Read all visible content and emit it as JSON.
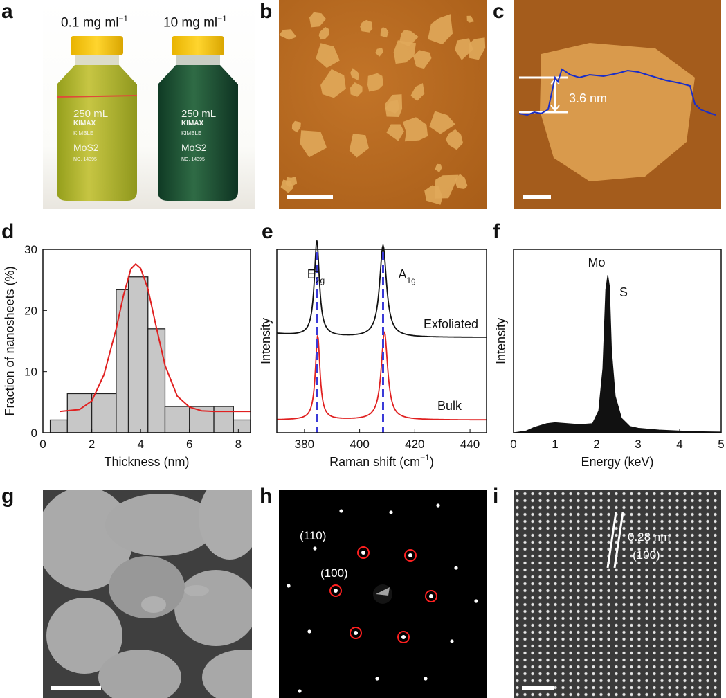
{
  "panels": {
    "a": {
      "letter": "a",
      "bottle_left_label": "0.1 mg ml",
      "bottle_right_label": "10 mg ml",
      "unit_sup": "−1",
      "bottle_text": [
        "250 mL",
        "KIMAX",
        "KIMBLE",
        "MoS2",
        "NO. 14395"
      ]
    },
    "b": {
      "letter": "b"
    },
    "c": {
      "letter": "c",
      "height_annotation": "3.6 nm"
    },
    "d": {
      "letter": "d"
    },
    "e": {
      "letter": "e"
    },
    "f": {
      "letter": "f"
    },
    "g": {
      "letter": "g"
    },
    "h": {
      "letter": "h",
      "spot_label_110": "(110)",
      "spot_label_100": "(100)"
    },
    "i": {
      "letter": "i",
      "spacing_label": "0.28 nm",
      "plane_label": "(100)"
    }
  },
  "colors": {
    "afm_bg": "#b96a22",
    "flake": "#e0a95a",
    "hist_fill": "#c7c7c7",
    "fit": "#e02020",
    "profile": "#1a2ec8",
    "raman_bulk": "#e02020",
    "dash": "#3a3ad8"
  },
  "chart_data": [
    {
      "type": "bar",
      "panel": "d",
      "xlabel": "Thickness (nm)",
      "ylabel": "Fraction of nanosheets (%)",
      "xlim": [
        0,
        8.5
      ],
      "ylim": [
        0,
        30
      ],
      "xticks": [
        "0",
        "2",
        "4",
        "6",
        "8"
      ],
      "yticks": [
        "0",
        "10",
        "20",
        "30"
      ],
      "bins": [
        [
          0.3,
          1.0
        ],
        [
          1.0,
          2.0
        ],
        [
          2.0,
          3.0
        ],
        [
          3.0,
          3.5
        ],
        [
          3.5,
          4.3
        ],
        [
          4.3,
          5.0
        ],
        [
          5.0,
          6.0
        ],
        [
          6.0,
          7.0
        ],
        [
          7.0,
          7.8
        ],
        [
          7.8,
          8.5
        ]
      ],
      "values": [
        2.1,
        6.4,
        6.4,
        23.4,
        25.5,
        17.0,
        4.3,
        4.3,
        4.3,
        2.1
      ],
      "fit_curve": {
        "x": [
          0.7,
          1.5,
          2.0,
          2.5,
          3.0,
          3.3,
          3.6,
          3.8,
          4.0,
          4.3,
          4.6,
          5.0,
          5.5,
          6.0,
          6.5,
          7.0,
          8.5
        ],
        "y": [
          3.5,
          3.8,
          5.2,
          9.5,
          17.0,
          22.5,
          26.8,
          27.6,
          26.9,
          23.5,
          18.0,
          11.0,
          6.0,
          4.2,
          3.6,
          3.5,
          3.5
        ]
      }
    },
    {
      "type": "line",
      "panel": "e",
      "xlabel": "Raman shift (cm",
      "xlabel_sup": "−1",
      "xlabel_end": ")",
      "ylabel": "Intensity",
      "xlim": [
        370,
        446
      ],
      "xticks": [
        "380",
        "400",
        "420",
        "440"
      ],
      "peak_labels": [
        {
          "main": "E",
          "sub": "2g",
          "sup": "1"
        },
        {
          "main": "A",
          "sub": "1g"
        }
      ],
      "peak_positions": [
        384.5,
        408.5
      ],
      "series": [
        {
          "name": "Exfoliated",
          "baseline": 0.52,
          "peaks": [
            [
              384.5,
              0.52,
              1.1
            ],
            [
              408.5,
              0.5,
              1.5
            ]
          ],
          "tail": 0.02
        },
        {
          "name": "Bulk",
          "baseline": 0.07,
          "peaks": [
            [
              384.8,
              0.46,
              1.0
            ],
            [
              409.0,
              0.48,
              1.4
            ]
          ],
          "tail": 0.0
        }
      ]
    },
    {
      "type": "area",
      "panel": "f",
      "xlabel": "Energy (keV)",
      "ylabel": "Intensity",
      "xlim": [
        0,
        5
      ],
      "xticks": [
        "0",
        "1",
        "2",
        "3",
        "4",
        "5"
      ],
      "peak_labels": [
        "Mo",
        "S"
      ],
      "x": [
        0.0,
        0.3,
        0.5,
        0.8,
        1.0,
        1.3,
        1.6,
        1.9,
        2.05,
        2.15,
        2.22,
        2.27,
        2.31,
        2.36,
        2.45,
        2.6,
        2.8,
        3.0,
        3.5,
        4.0,
        4.5,
        5.0
      ],
      "y": [
        0.0,
        0.01,
        0.03,
        0.05,
        0.055,
        0.05,
        0.045,
        0.05,
        0.12,
        0.35,
        0.78,
        0.86,
        0.8,
        0.45,
        0.2,
        0.08,
        0.035,
        0.025,
        0.015,
        0.01,
        0.006,
        0.004
      ]
    }
  ]
}
